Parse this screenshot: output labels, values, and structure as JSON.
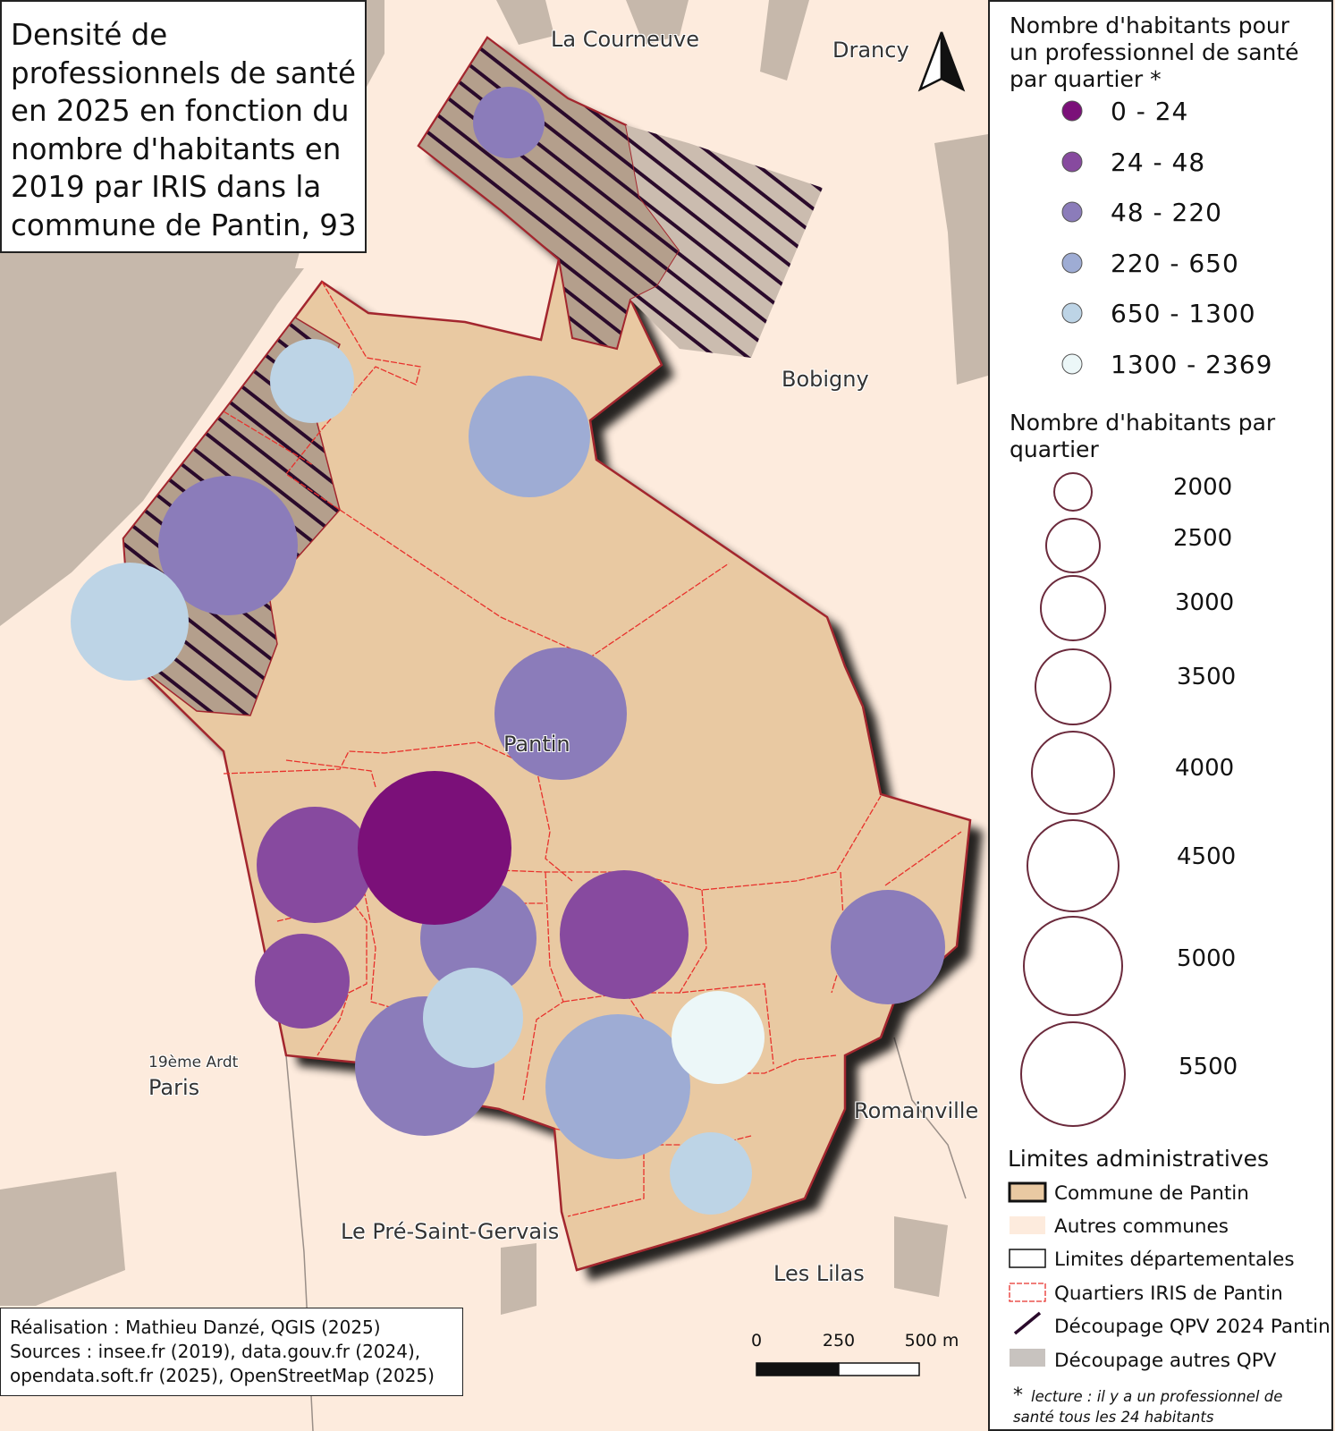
{
  "map": {
    "title_lines": [
      "Densité de",
      "professionnels de santé",
      "en 2025 en fonction du",
      "nombre d'habitants en",
      "2019 par IRIS dans la",
      "commune de Pantin, 93"
    ],
    "place_names": {
      "la_courneuve": "La Courneuve",
      "drancy": "Drancy",
      "bobigny": "Bobigny",
      "pantin": "Pantin",
      "paris_arr": "19ème Ardt",
      "paris": "Paris",
      "romainville": "Romainville",
      "pre_saint_gervais": "Le Pré-Saint-Gervais",
      "les_lilas": "Les Lilas"
    },
    "credits": [
      "Réalisation : Mathieu Danzé, QGIS (2025)",
      "Sources : insee.fr (2019), data.gouv.fr (2024),",
      "opendata.soft.fr (2025), OpenStreetMap (2025)"
    ],
    "scale_bar": {
      "labels": [
        "0",
        "250",
        "500 m"
      ]
    }
  },
  "legend": {
    "density_title_lines": [
      "Nombre d'habitants pour",
      "un professionnel de santé",
      "par quartier  *"
    ],
    "density_classes": [
      {
        "label": "0 - 24",
        "color": "#7b1079"
      },
      {
        "label": "24 - 48",
        "color": "#874a9f"
      },
      {
        "label": "48 - 220",
        "color": "#8b7cba"
      },
      {
        "label": "220 - 650",
        "color": "#9eacd4"
      },
      {
        "label": "650 - 1300",
        "color": "#bdd4e6"
      },
      {
        "label": "1300 - 2369",
        "color": "#ecf7f8"
      }
    ],
    "population_title_lines": [
      "Nombre d'habitants par",
      "quartier"
    ],
    "population_sizes": [
      "2000",
      "2500",
      "3000",
      "3500",
      "4000",
      "4500",
      "5000",
      "5500"
    ],
    "admin_title": "Limites administratives",
    "admin_items": [
      {
        "key": "commune",
        "label": "Commune de Pantin"
      },
      {
        "key": "autres",
        "label": "Autres communes"
      },
      {
        "key": "dept",
        "label": "Limites départementales"
      },
      {
        "key": "iris",
        "label": "Quartiers IRIS de Pantin"
      },
      {
        "key": "qpv",
        "label": "Découpage QPV 2024 Pantin"
      },
      {
        "key": "autres_qpv",
        "label": "Découpage autres QPV"
      }
    ],
    "note_star": "*",
    "note_lines": [
      "lecture : il y a un professionnel de",
      "santé tous les 24 habitants"
    ]
  },
  "colors": {
    "background": "#fdebdd",
    "commune": "#e9c9a2",
    "commune_border": "#a3262e",
    "iris_lines": "#e8312c",
    "other_qpv": "#c6b8ab",
    "qpv_hatch": "#2a0a2b"
  },
  "icons": {
    "north_arrow": "north-arrow-icon"
  }
}
